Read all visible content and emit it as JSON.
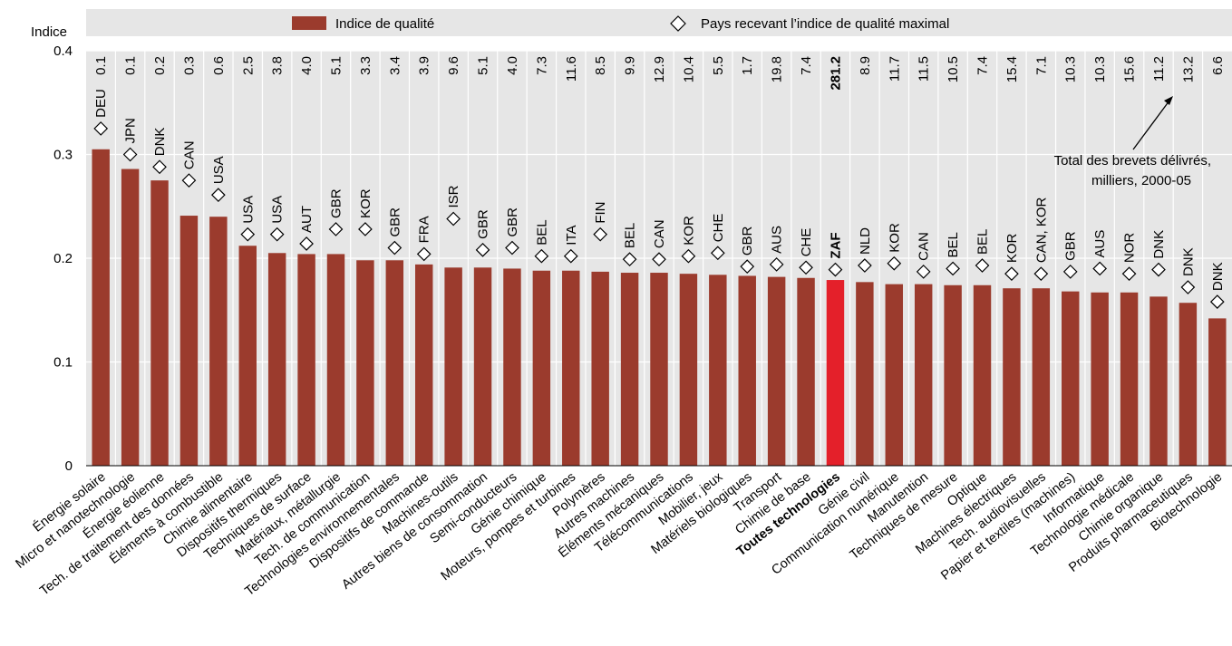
{
  "chart_data": {
    "type": "bar",
    "ylabel": "Indice",
    "ylim": [
      0,
      0.4
    ],
    "yticks": [
      0,
      0.1,
      0.2,
      0.3,
      0.4
    ],
    "ytick_labels": [
      "0",
      "0.1",
      "0.2",
      "0.3",
      "0.4"
    ],
    "grid": true,
    "legend": [
      {
        "label": "Indice de qualité",
        "marker": "bar"
      },
      {
        "label": "Pays recevant l’indice de qualité maximal",
        "marker": "diamond"
      }
    ],
    "annotation": "Total des brevets délivrés, milliers, 2000-05",
    "annotation_lines": [
      "Total des brevets délivrés,",
      "milliers, 2000-05"
    ],
    "highlight_category": "Toutes technologies",
    "colors": {
      "bar": "#9b3b2d",
      "highlight": "#e4202a",
      "band": "#e6e6e6",
      "grid": "#ffffff"
    },
    "categories": [
      "Énergie solaire",
      "Micro et nanotechnologie",
      "Énergie éolienne",
      "Tech. de traitement des données",
      "Éléments à combustible",
      "Chimie alimentaire",
      "Dispositifs thermiques",
      "Techniques de surface",
      "Matériaux, métallurgie",
      "Tech. de communication",
      "Technologies environnementales",
      "Dispositifs de commande",
      "Machines-outils",
      "Autres biens de consommation",
      "Semi-conducteurs",
      "Génie chimique",
      "Moteurs, pompes et turbines",
      "Polymères",
      "Autres machines",
      "Éléments mécaniques",
      "Télécommunications",
      "Mobilier, jeux",
      "Matériels biologiques",
      "Transport",
      "Chimie de base",
      "Toutes technologies",
      "Génie civil",
      "Communication numérique",
      "Manutention",
      "Techniques de mesure",
      "Optique",
      "Machines électriques",
      "Tech. audiovisuelles",
      "Papier et textiles (machines)",
      "Informatique",
      "Technologie médicale",
      "Chimie organique",
      "Produits pharmaceutiques",
      "Biotechnologie"
    ],
    "values": [
      0.305,
      0.286,
      0.275,
      0.241,
      0.24,
      0.212,
      0.205,
      0.204,
      0.204,
      0.198,
      0.198,
      0.194,
      0.191,
      0.191,
      0.19,
      0.188,
      0.188,
      0.187,
      0.186,
      0.186,
      0.185,
      0.184,
      0.183,
      0.182,
      0.181,
      0.179,
      0.177,
      0.175,
      0.175,
      0.174,
      0.174,
      0.171,
      0.171,
      0.168,
      0.167,
      0.167,
      0.163,
      0.157,
      0.142
    ],
    "max_country": [
      "DEU",
      "JPN",
      "DNK",
      "CAN",
      "USA",
      "USA",
      "USA",
      "AUT",
      "GBR",
      "KOR",
      "GBR",
      "FRA",
      "ISR",
      "GBR",
      "GBR",
      "BEL",
      "ITA",
      "FIN",
      "BEL",
      "CAN",
      "KOR",
      "CHE",
      "GBR",
      "AUS",
      "CHE",
      "ZAF",
      "NLD",
      "KOR",
      "CAN",
      "BEL",
      "BEL",
      "KOR",
      "CAN, KOR",
      "GBR",
      "AUS",
      "NOR",
      "DNK",
      "DNK",
      "DNK"
    ],
    "max_value": [
      0.325,
      0.3,
      0.288,
      0.275,
      0.261,
      0.223,
      0.223,
      0.214,
      0.228,
      0.228,
      0.21,
      0.204,
      0.238,
      0.208,
      0.21,
      0.202,
      0.202,
      0.223,
      0.199,
      0.199,
      0.202,
      0.205,
      0.192,
      0.194,
      0.191,
      0.189,
      0.193,
      0.195,
      0.187,
      0.19,
      0.193,
      0.185,
      0.185,
      0.187,
      0.19,
      0.185,
      0.189,
      0.172,
      0.158
    ],
    "patents_total": [
      "0.1",
      "0.1",
      "0.2",
      "0.3",
      "0.6",
      "2.5",
      "3.8",
      "4.0",
      "5.1",
      "3.3",
      "3.4",
      "3.9",
      "9.6",
      "5.1",
      "4.0",
      "7.3",
      "11.6",
      "8.5",
      "9.9",
      "12.9",
      "10.4",
      "5.5",
      "1.7",
      "19.8",
      "7.4",
      "281.2",
      "8.9",
      "11.7",
      "11.5",
      "10.5",
      "7.4",
      "15.4",
      "7.1",
      "10.3",
      "10.3",
      "15.6",
      "11.2",
      "13.2",
      "6.6"
    ]
  }
}
